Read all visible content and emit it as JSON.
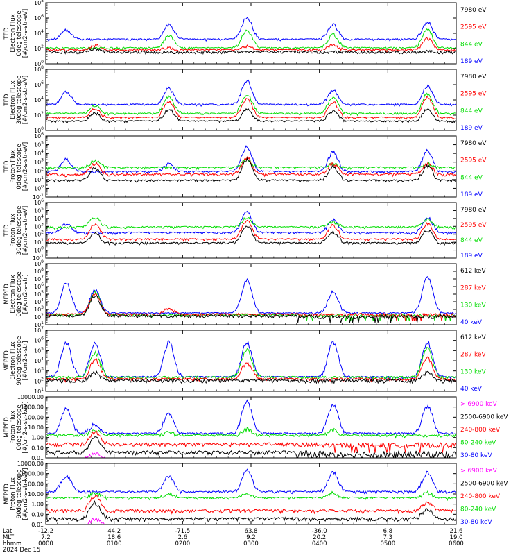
{
  "chart_data": [
    {
      "type": "line",
      "ylabel": [
        "TED",
        "Electron Flux",
        "0deg telescope",
        "[#/cm2-s-str-eV]"
      ],
      "yscale": "log",
      "ylim": [
        1,
        100000000
      ],
      "tick_labels": [
        "10^0",
        "10^2",
        "10^4",
        "10^6",
        "10^8"
      ],
      "series": [
        {
          "name": "7980 eV",
          "color": "#000000",
          "baseline": [
            1,
            50
          ],
          "bursts": [
            [
              0.12,
              150
            ],
            [
              0.3,
              30
            ],
            [
              0.49,
              25
            ],
            [
              0.7,
              25
            ],
            [
              0.93,
              60
            ]
          ]
        },
        {
          "name": "2595 eV",
          "color": "#ff0000",
          "baseline": [
            2,
            80
          ],
          "bursts": [
            [
              0.12,
              400
            ],
            [
              0.3,
              200
            ],
            [
              0.49,
              300
            ],
            [
              0.7,
              500
            ],
            [
              0.93,
              3000
            ]
          ]
        },
        {
          "name": "844 eV",
          "color": "#00dd00",
          "baseline": [
            20,
            150
          ],
          "bursts": [
            [
              0.3,
              8000
            ],
            [
              0.49,
              40000
            ],
            [
              0.7,
              10000
            ],
            [
              0.93,
              50000
            ]
          ]
        },
        {
          "name": "189 eV",
          "color": "#0000ff",
          "baseline": [
            600,
            2000
          ],
          "bursts": [
            [
              0.05,
              40000
            ],
            [
              0.3,
              200000
            ],
            [
              0.49,
              2000000
            ],
            [
              0.7,
              200000
            ],
            [
              0.93,
              500000
            ]
          ]
        }
      ]
    },
    {
      "type": "line",
      "ylabel": [
        "TED",
        "Electron Flux",
        "30deg telescope",
        "[#/cm2-s-str-eV]"
      ],
      "yscale": "log",
      "ylim": [
        1,
        100000000
      ],
      "tick_labels": [
        "10^0",
        "10^2",
        "10^4",
        "10^6",
        "10^8"
      ],
      "series": [
        {
          "name": "7980 eV",
          "color": "#000000",
          "baseline": [
            1,
            20
          ],
          "bursts": [
            [
              0.12,
              300
            ],
            [
              0.3,
              1000
            ],
            [
              0.49,
              1000
            ],
            [
              0.7,
              500
            ],
            [
              0.93,
              1000
            ]
          ]
        },
        {
          "name": "2595 eV",
          "color": "#ff0000",
          "baseline": [
            5,
            60
          ],
          "bursts": [
            [
              0.12,
              1000
            ],
            [
              0.3,
              10000
            ],
            [
              0.49,
              20000
            ],
            [
              0.7,
              8000
            ],
            [
              0.93,
              30000
            ]
          ]
        },
        {
          "name": "844 eV",
          "color": "#00dd00",
          "baseline": [
            30,
            200
          ],
          "bursts": [
            [
              0.12,
              3000
            ],
            [
              0.3,
              40000
            ],
            [
              0.49,
              80000
            ],
            [
              0.7,
              30000
            ],
            [
              0.93,
              100000
            ]
          ]
        },
        {
          "name": "189 eV",
          "color": "#0000ff",
          "baseline": [
            500,
            3000
          ],
          "bursts": [
            [
              0.05,
              200000
            ],
            [
              0.3,
              500000
            ],
            [
              0.49,
              5000000
            ],
            [
              0.7,
              300000
            ],
            [
              0.93,
              1000000
            ]
          ]
        }
      ]
    },
    {
      "type": "line",
      "ylabel": [
        "TED",
        "Proton Flux",
        "0deg telescope",
        "[#/cm2-s-str-eV]"
      ],
      "yscale": "log",
      "ylim": [
        0.1,
        1000000
      ],
      "tick_labels": [
        "10^-1",
        "10^0",
        "10^1",
        "10^2",
        "10^3",
        "10^4",
        "10^5",
        "10^6"
      ],
      "series": [
        {
          "name": "7980 eV",
          "color": "#000000",
          "baseline": [
            0.1,
            10
          ],
          "bursts": [
            [
              0.12,
              300
            ],
            [
              0.49,
              3000
            ],
            [
              0.7,
              500
            ],
            [
              0.93,
              500
            ]
          ]
        },
        {
          "name": "2595 eV",
          "color": "#ff0000",
          "baseline": [
            1,
            50
          ],
          "bursts": [
            [
              0.12,
              1000
            ],
            [
              0.49,
              5000
            ],
            [
              0.7,
              1000
            ],
            [
              0.93,
              1000
            ]
          ]
        },
        {
          "name": "844 eV",
          "color": "#00dd00",
          "baseline": [
            30,
            300
          ],
          "bursts": [
            [
              0.12,
              2000
            ],
            [
              0.49,
              3000
            ],
            [
              0.7,
              1000
            ],
            [
              0.93,
              1000
            ]
          ]
        },
        {
          "name": "189 eV",
          "color": "#0000ff",
          "baseline": [
            3,
            100
          ],
          "bursts": [
            [
              0.05,
              3000
            ],
            [
              0.3,
              1000
            ],
            [
              0.49,
              100000
            ],
            [
              0.7,
              20000
            ],
            [
              0.93,
              30000
            ]
          ]
        }
      ]
    },
    {
      "type": "line",
      "ylabel": [
        "TED",
        "Proton Flux",
        "30deg telescope",
        "[#/cm2-s-str-eV]"
      ],
      "yscale": "log",
      "ylim": [
        0.1,
        1000000
      ],
      "tick_labels": [
        "10^-1",
        "10^0",
        "10^1",
        "10^2",
        "10^3",
        "10^4",
        "10^5",
        "10^6"
      ],
      "series": [
        {
          "name": "7980 eV",
          "color": "#000000",
          "baseline": [
            0.1,
            10
          ],
          "bursts": [
            [
              0.12,
              200
            ],
            [
              0.49,
              2000
            ],
            [
              0.7,
              300
            ],
            [
              0.93,
              500
            ]
          ]
        },
        {
          "name": "2595 eV",
          "color": "#ff0000",
          "baseline": [
            1,
            30
          ],
          "bursts": [
            [
              0.12,
              3000
            ],
            [
              0.49,
              8000
            ],
            [
              0.7,
              2000
            ],
            [
              0.93,
              3000
            ]
          ]
        },
        {
          "name": "844 eV",
          "color": "#00dd00",
          "baseline": [
            200,
            1000
          ],
          "bursts": [
            [
              0.12,
              20000
            ],
            [
              0.49,
              20000
            ],
            [
              0.7,
              5000
            ],
            [
              0.93,
              10000
            ]
          ]
        },
        {
          "name": "189 eV",
          "color": "#0000ff",
          "baseline": [
            3,
            200
          ],
          "bursts": [
            [
              0.05,
              3000
            ],
            [
              0.49,
              100000
            ],
            [
              0.7,
              10000
            ],
            [
              0.93,
              20000
            ]
          ]
        }
      ]
    },
    {
      "type": "line",
      "ylabel": [
        "MEPED",
        "Electron Flux",
        "0deg telescope",
        "[#/cm2-s-str]"
      ],
      "yscale": "log",
      "ylim": [
        10,
        1000000000
      ],
      "tick_labels": [
        "10^1",
        "10^2",
        "10^3",
        "10^4",
        "10^5",
        "10^6",
        "10^7",
        "10^8",
        "10^9"
      ],
      "series": [
        {
          "name": "612 keV",
          "color": "#000000",
          "baseline": [
            60,
            200
          ],
          "bursts": [
            [
              0.12,
              100000
            ]
          ]
        },
        {
          "name": "287 keV",
          "color": "#ff0000",
          "baseline": [
            100,
            300
          ],
          "bursts": [
            [
              0.12,
              200000
            ],
            [
              0.3,
              2000
            ]
          ]
        },
        {
          "name": "130 keV",
          "color": "#00dd00",
          "baseline": [
            100,
            250
          ],
          "bursts": [
            [
              0.12,
              300000
            ]
          ]
        },
        {
          "name": "40 keV",
          "color": "#0000ff",
          "baseline": [
            100,
            400
          ],
          "bursts": [
            [
              0.05,
              5000000
            ],
            [
              0.12,
              500000
            ],
            [
              0.49,
              10000000
            ],
            [
              0.7,
              300000
            ],
            [
              0.93,
              30000000
            ]
          ]
        }
      ]
    },
    {
      "type": "line",
      "ylabel": [
        "MEPED",
        "Electron Flux",
        "90deg telescope",
        "[#/cm2-s-str]"
      ],
      "yscale": "log",
      "ylim": [
        10,
        10000000
      ],
      "tick_labels": [
        "10^1",
        "10^2",
        "10^3",
        "10^4",
        "10^5",
        "10^6",
        "10^7"
      ],
      "series": [
        {
          "name": "612 keV",
          "color": "#000000",
          "baseline": [
            60,
            150
          ],
          "bursts": [
            [
              0.12,
              1000
            ],
            [
              0.93,
              1000
            ]
          ]
        },
        {
          "name": "287 keV",
          "color": "#ff0000",
          "baseline": [
            80,
            200
          ],
          "bursts": [
            [
              0.12,
              20000
            ],
            [
              0.49,
              10000
            ],
            [
              0.93,
              30000
            ]
          ]
        },
        {
          "name": "130 keV",
          "color": "#00dd00",
          "baseline": [
            100,
            300
          ],
          "bursts": [
            [
              0.12,
              100000
            ],
            [
              0.49,
              200000
            ],
            [
              0.93,
              300000
            ]
          ]
        },
        {
          "name": "40 keV",
          "color": "#0000ff",
          "baseline": [
            100,
            300
          ],
          "bursts": [
            [
              0.05,
              1000000
            ],
            [
              0.12,
              1000000
            ],
            [
              0.3,
              1000000
            ],
            [
              0.49,
              1000000
            ],
            [
              0.7,
              1000000
            ],
            [
              0.93,
              1000000
            ]
          ]
        }
      ]
    },
    {
      "type": "line",
      "ylabel": [
        "MEPED",
        "Proton Flux",
        "0deg telescope",
        "[#/cm2-s-str-keV]"
      ],
      "yscale": "log",
      "ylim": [
        0.01,
        10000
      ],
      "tick_labels": [
        "0.01",
        "0.10",
        "1.00",
        "10.00",
        "100.00",
        "1000.00",
        "10000.00"
      ],
      "series": [
        {
          "name": "> 6900 keV",
          "color": "#ff00ff",
          "baseline": [
            0.01,
            0.01
          ],
          "bursts": [
            [
              0.12,
              0.05
            ]
          ]
        },
        {
          "name": "2500-6900 keV",
          "color": "#000000",
          "baseline": [
            0.01,
            0.05
          ],
          "bursts": [
            [
              0.12,
              1.5
            ]
          ]
        },
        {
          "name": "240-800 keV",
          "color": "#ff0000",
          "baseline": [
            0.1,
            0.3
          ],
          "bursts": [
            [
              0.12,
              5
            ]
          ]
        },
        {
          "name": "80-240 keV",
          "color": "#00dd00",
          "baseline": [
            0.8,
            2
          ],
          "bursts": [
            [
              0.12,
              10
            ],
            [
              0.3,
              5
            ],
            [
              0.49,
              10
            ],
            [
              0.7,
              8
            ]
          ]
        },
        {
          "name": "30-80 keV",
          "color": "#0000ff",
          "baseline": [
            1,
            3
          ],
          "bursts": [
            [
              0.05,
              1000
            ],
            [
              0.12,
              30
            ],
            [
              0.3,
              300
            ],
            [
              0.49,
              5000
            ],
            [
              0.7,
              3000
            ],
            [
              0.93,
              2000
            ]
          ]
        }
      ]
    },
    {
      "type": "line",
      "ylabel": [
        "MEPED",
        "Proton Flux",
        "90deg telescope",
        "[#/cm2-s-str-keV]"
      ],
      "yscale": "log",
      "ylim": [
        0.01,
        10000
      ],
      "tick_labels": [
        "0.01",
        "0.10",
        "1.00",
        "10.00",
        "100.00",
        "1000.00",
        "10000.00"
      ],
      "series": [
        {
          "name": "> 6900 keV",
          "color": "#ff00ff",
          "baseline": [
            0.01,
            0.01
          ],
          "bursts": [
            [
              0.12,
              0.05
            ]
          ]
        },
        {
          "name": "2500-6900 keV",
          "color": "#000000",
          "baseline": [
            0.01,
            0.05
          ],
          "bursts": [
            [
              0.12,
              2
            ],
            [
              0.93,
              0.5
            ]
          ]
        },
        {
          "name": "240-800 keV",
          "color": "#ff0000",
          "baseline": [
            0.1,
            0.3
          ],
          "bursts": [
            [
              0.12,
              10
            ],
            [
              0.93,
              2
            ]
          ]
        },
        {
          "name": "80-240 keV",
          "color": "#00dd00",
          "baseline": [
            1,
            5
          ],
          "bursts": [
            [
              0.12,
              20
            ],
            [
              0.3,
              20
            ],
            [
              0.49,
              20
            ],
            [
              0.7,
              20
            ],
            [
              0.93,
              20
            ]
          ]
        },
        {
          "name": "30-80 keV",
          "color": "#0000ff",
          "baseline": [
            2,
            20
          ],
          "bursts": [
            [
              0.05,
              1000
            ],
            [
              0.3,
              1000
            ],
            [
              0.49,
              3000
            ],
            [
              0.7,
              2000
            ],
            [
              0.93,
              2000
            ]
          ]
        }
      ]
    }
  ],
  "x_axis": {
    "row_labels": [
      "Lat",
      "MLT",
      "hhmm",
      "2024 Dec 15"
    ],
    "ticks": [
      {
        "lat": "-12.2",
        "mlt": "7.2",
        "hhmm": "0000"
      },
      {
        "lat": "44.2",
        "mlt": "18.6",
        "hhmm": "0100"
      },
      {
        "lat": "-71.5",
        "mlt": "2.6",
        "hhmm": "0200"
      },
      {
        "lat": "63.8",
        "mlt": "9.2",
        "hhmm": "0300"
      },
      {
        "lat": "-36.0",
        "mlt": "20.2",
        "hhmm": "0400"
      },
      {
        "lat": "6.8",
        "mlt": "7.3",
        "hhmm": "0500"
      },
      {
        "lat": "21.6",
        "mlt": "19.0",
        "hhmm": "0600"
      }
    ]
  }
}
